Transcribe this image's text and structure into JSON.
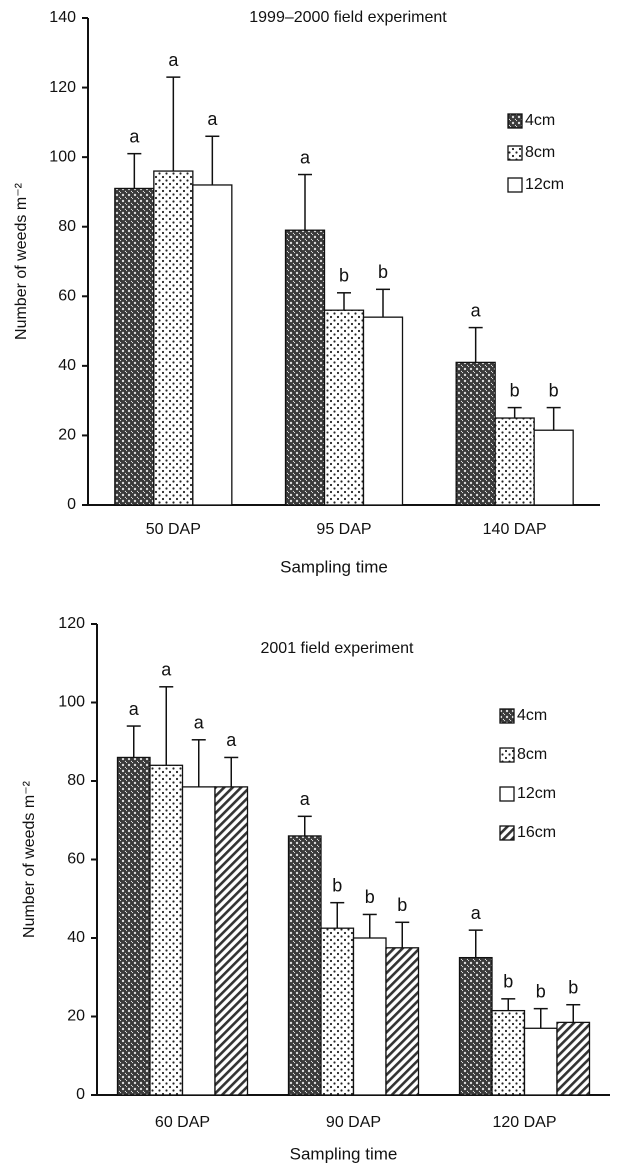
{
  "chart_data": [
    {
      "type": "bar",
      "title": "1999–2000 field experiment",
      "xlabel": "Sampling time",
      "ylabel": "Number of weeds m⁻²",
      "categories": [
        "50 DAP",
        "95 DAP",
        "140 DAP"
      ],
      "ylim": [
        0,
        140
      ],
      "yticks": [
        0,
        20,
        40,
        60,
        80,
        100,
        120,
        140
      ],
      "legend": "right",
      "series": [
        {
          "name": "4cm",
          "pattern": "crosshatch",
          "values": [
            91,
            79,
            41
          ],
          "errors": [
            10,
            16,
            10
          ],
          "labels": [
            "a",
            "a",
            "a"
          ]
        },
        {
          "name": "8cm",
          "pattern": "dots",
          "values": [
            96,
            56,
            25
          ],
          "errors": [
            27,
            5,
            3
          ],
          "labels": [
            "a",
            "b",
            "b"
          ]
        },
        {
          "name": "12cm",
          "pattern": "white",
          "values": [
            92,
            54,
            21.5
          ],
          "errors": [
            14,
            8,
            6.5
          ],
          "labels": [
            "a",
            "b",
            "b"
          ]
        }
      ]
    },
    {
      "type": "bar",
      "title": "2001 field experiment",
      "xlabel": "Sampling time",
      "ylabel": "Number of weeds m⁻²",
      "categories": [
        "60 DAP",
        "90 DAP",
        "120 DAP"
      ],
      "ylim": [
        0,
        120
      ],
      "yticks": [
        0,
        20,
        40,
        60,
        80,
        100,
        120
      ],
      "legend": "right",
      "series": [
        {
          "name": "4cm",
          "pattern": "crosshatch",
          "values": [
            86,
            66,
            35
          ],
          "errors": [
            8,
            5,
            7
          ],
          "labels": [
            "a",
            "a",
            "a"
          ]
        },
        {
          "name": "8cm",
          "pattern": "dots",
          "values": [
            84,
            42.5,
            21.5
          ],
          "errors": [
            20,
            6.5,
            3
          ],
          "labels": [
            "a",
            "b",
            "b"
          ]
        },
        {
          "name": "12cm",
          "pattern": "white",
          "values": [
            78.5,
            40,
            17
          ],
          "errors": [
            12,
            6,
            5
          ],
          "labels": [
            "a",
            "b",
            "b"
          ]
        },
        {
          "name": "16cm",
          "pattern": "stripes",
          "values": [
            78.5,
            37.5,
            18.5
          ],
          "errors": [
            7.5,
            6.5,
            4.5
          ],
          "labels": [
            "a",
            "b",
            "b"
          ]
        }
      ]
    }
  ]
}
